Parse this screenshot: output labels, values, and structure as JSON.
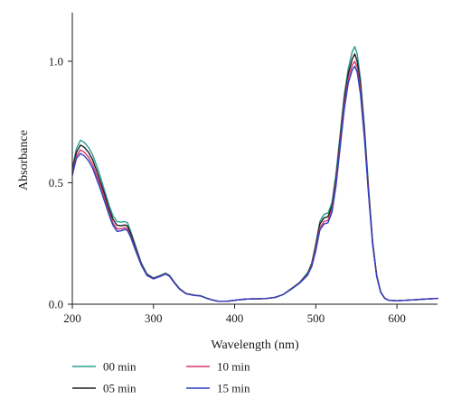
{
  "chart_data": {
    "type": "line",
    "title": "",
    "xlabel": "Wavelength (nm)",
    "ylabel": "Absorbance",
    "xlim": [
      200,
      650
    ],
    "ylim": [
      0,
      1.2
    ],
    "x_ticks": [
      200,
      300,
      400,
      500,
      600
    ],
    "y_ticks": [
      0.0,
      0.5,
      1.0
    ],
    "x_tick_labels": [
      "200",
      "300",
      "400",
      "500",
      "600"
    ],
    "y_tick_labels": [
      "0.0",
      "0.5",
      "1.0"
    ],
    "grid": false,
    "legend_position": "bottom",
    "series": [
      {
        "name": "00 min",
        "color": "#2a9d8f",
        "points": [
          [
            200,
            0.56
          ],
          [
            205,
            0.64
          ],
          [
            210,
            0.675
          ],
          [
            215,
            0.665
          ],
          [
            220,
            0.645
          ],
          [
            225,
            0.615
          ],
          [
            230,
            0.57
          ],
          [
            235,
            0.52
          ],
          [
            240,
            0.465
          ],
          [
            245,
            0.41
          ],
          [
            250,
            0.365
          ],
          [
            255,
            0.34
          ],
          [
            260,
            0.338
          ],
          [
            265,
            0.34
          ],
          [
            268,
            0.335
          ],
          [
            272,
            0.3
          ],
          [
            278,
            0.24
          ],
          [
            285,
            0.17
          ],
          [
            292,
            0.125
          ],
          [
            300,
            0.108
          ],
          [
            308,
            0.118
          ],
          [
            315,
            0.128
          ],
          [
            320,
            0.118
          ],
          [
            326,
            0.09
          ],
          [
            332,
            0.065
          ],
          [
            340,
            0.045
          ],
          [
            350,
            0.038
          ],
          [
            358,
            0.035
          ],
          [
            365,
            0.026
          ],
          [
            372,
            0.018
          ],
          [
            380,
            0.012
          ],
          [
            390,
            0.012
          ],
          [
            400,
            0.016
          ],
          [
            410,
            0.02
          ],
          [
            420,
            0.022
          ],
          [
            430,
            0.022
          ],
          [
            440,
            0.024
          ],
          [
            450,
            0.028
          ],
          [
            460,
            0.04
          ],
          [
            470,
            0.065
          ],
          [
            480,
            0.09
          ],
          [
            490,
            0.13
          ],
          [
            495,
            0.17
          ],
          [
            500,
            0.25
          ],
          [
            505,
            0.34
          ],
          [
            510,
            0.37
          ],
          [
            515,
            0.375
          ],
          [
            520,
            0.42
          ],
          [
            525,
            0.54
          ],
          [
            530,
            0.7
          ],
          [
            535,
            0.86
          ],
          [
            540,
            0.97
          ],
          [
            545,
            1.04
          ],
          [
            548,
            1.06
          ],
          [
            551,
            1.03
          ],
          [
            555,
            0.93
          ],
          [
            560,
            0.73
          ],
          [
            565,
            0.48
          ],
          [
            570,
            0.26
          ],
          [
            575,
            0.12
          ],
          [
            580,
            0.05
          ],
          [
            585,
            0.025
          ],
          [
            590,
            0.016
          ],
          [
            600,
            0.014
          ],
          [
            610,
            0.016
          ],
          [
            620,
            0.018
          ],
          [
            630,
            0.02
          ],
          [
            640,
            0.022
          ],
          [
            650,
            0.024
          ]
        ]
      },
      {
        "name": "05 min",
        "color": "#1e1e1e",
        "points": [
          [
            200,
            0.55
          ],
          [
            205,
            0.625
          ],
          [
            210,
            0.655
          ],
          [
            215,
            0.645
          ],
          [
            220,
            0.625
          ],
          [
            225,
            0.595
          ],
          [
            230,
            0.55
          ],
          [
            235,
            0.5
          ],
          [
            240,
            0.45
          ],
          [
            245,
            0.395
          ],
          [
            250,
            0.35
          ],
          [
            255,
            0.325
          ],
          [
            260,
            0.323
          ],
          [
            265,
            0.326
          ],
          [
            268,
            0.322
          ],
          [
            272,
            0.29
          ],
          [
            278,
            0.232
          ],
          [
            285,
            0.165
          ],
          [
            292,
            0.122
          ],
          [
            300,
            0.106
          ],
          [
            308,
            0.116
          ],
          [
            315,
            0.126
          ],
          [
            320,
            0.116
          ],
          [
            326,
            0.088
          ],
          [
            332,
            0.064
          ],
          [
            340,
            0.044
          ],
          [
            350,
            0.037
          ],
          [
            358,
            0.034
          ],
          [
            365,
            0.025
          ],
          [
            372,
            0.018
          ],
          [
            380,
            0.012
          ],
          [
            390,
            0.012
          ],
          [
            400,
            0.016
          ],
          [
            410,
            0.02
          ],
          [
            420,
            0.022
          ],
          [
            430,
            0.022
          ],
          [
            440,
            0.024
          ],
          [
            450,
            0.028
          ],
          [
            460,
            0.04
          ],
          [
            470,
            0.064
          ],
          [
            480,
            0.088
          ],
          [
            490,
            0.125
          ],
          [
            495,
            0.165
          ],
          [
            500,
            0.24
          ],
          [
            505,
            0.33
          ],
          [
            510,
            0.355
          ],
          [
            515,
            0.36
          ],
          [
            520,
            0.405
          ],
          [
            525,
            0.52
          ],
          [
            530,
            0.68
          ],
          [
            535,
            0.84
          ],
          [
            540,
            0.95
          ],
          [
            545,
            1.01
          ],
          [
            548,
            1.03
          ],
          [
            551,
            1.0
          ],
          [
            555,
            0.905
          ],
          [
            560,
            0.71
          ],
          [
            565,
            0.47
          ],
          [
            570,
            0.255
          ],
          [
            575,
            0.118
          ],
          [
            580,
            0.05
          ],
          [
            585,
            0.024
          ],
          [
            590,
            0.016
          ],
          [
            600,
            0.014
          ],
          [
            610,
            0.016
          ],
          [
            620,
            0.018
          ],
          [
            630,
            0.02
          ],
          [
            640,
            0.022
          ],
          [
            650,
            0.024
          ]
        ]
      },
      {
        "name": "10 min",
        "color": "#d6336c",
        "points": [
          [
            200,
            0.54
          ],
          [
            205,
            0.61
          ],
          [
            210,
            0.635
          ],
          [
            215,
            0.625
          ],
          [
            220,
            0.605
          ],
          [
            225,
            0.575
          ],
          [
            230,
            0.53
          ],
          [
            235,
            0.485
          ],
          [
            240,
            0.435
          ],
          [
            245,
            0.38
          ],
          [
            250,
            0.335
          ],
          [
            255,
            0.31
          ],
          [
            260,
            0.31
          ],
          [
            265,
            0.315
          ],
          [
            268,
            0.31
          ],
          [
            272,
            0.28
          ],
          [
            278,
            0.225
          ],
          [
            285,
            0.162
          ],
          [
            292,
            0.12
          ],
          [
            300,
            0.105
          ],
          [
            308,
            0.115
          ],
          [
            315,
            0.125
          ],
          [
            320,
            0.115
          ],
          [
            326,
            0.087
          ],
          [
            332,
            0.063
          ],
          [
            340,
            0.044
          ],
          [
            350,
            0.037
          ],
          [
            358,
            0.034
          ],
          [
            365,
            0.025
          ],
          [
            372,
            0.018
          ],
          [
            380,
            0.012
          ],
          [
            390,
            0.012
          ],
          [
            400,
            0.016
          ],
          [
            410,
            0.02
          ],
          [
            420,
            0.022
          ],
          [
            430,
            0.022
          ],
          [
            440,
            0.024
          ],
          [
            450,
            0.028
          ],
          [
            460,
            0.04
          ],
          [
            470,
            0.063
          ],
          [
            480,
            0.087
          ],
          [
            490,
            0.122
          ],
          [
            495,
            0.16
          ],
          [
            500,
            0.23
          ],
          [
            505,
            0.315
          ],
          [
            510,
            0.34
          ],
          [
            515,
            0.345
          ],
          [
            520,
            0.39
          ],
          [
            525,
            0.505
          ],
          [
            530,
            0.66
          ],
          [
            535,
            0.82
          ],
          [
            540,
            0.93
          ],
          [
            545,
            0.985
          ],
          [
            548,
            1.0
          ],
          [
            551,
            0.975
          ],
          [
            555,
            0.885
          ],
          [
            560,
            0.695
          ],
          [
            565,
            0.46
          ],
          [
            570,
            0.25
          ],
          [
            575,
            0.116
          ],
          [
            580,
            0.049
          ],
          [
            585,
            0.024
          ],
          [
            590,
            0.016
          ],
          [
            600,
            0.014
          ],
          [
            610,
            0.016
          ],
          [
            620,
            0.018
          ],
          [
            630,
            0.02
          ],
          [
            640,
            0.022
          ],
          [
            650,
            0.024
          ]
        ]
      },
      {
        "name": "15 min",
        "color": "#2f3fbf",
        "points": [
          [
            200,
            0.53
          ],
          [
            205,
            0.6
          ],
          [
            210,
            0.62
          ],
          [
            215,
            0.61
          ],
          [
            220,
            0.59
          ],
          [
            225,
            0.56
          ],
          [
            230,
            0.515
          ],
          [
            235,
            0.47
          ],
          [
            240,
            0.42
          ],
          [
            245,
            0.37
          ],
          [
            250,
            0.325
          ],
          [
            255,
            0.3
          ],
          [
            260,
            0.302
          ],
          [
            265,
            0.308
          ],
          [
            268,
            0.303
          ],
          [
            272,
            0.275
          ],
          [
            278,
            0.22
          ],
          [
            285,
            0.16
          ],
          [
            292,
            0.118
          ],
          [
            300,
            0.104
          ],
          [
            308,
            0.114
          ],
          [
            315,
            0.124
          ],
          [
            320,
            0.114
          ],
          [
            326,
            0.086
          ],
          [
            332,
            0.062
          ],
          [
            340,
            0.043
          ],
          [
            350,
            0.036
          ],
          [
            358,
            0.034
          ],
          [
            365,
            0.025
          ],
          [
            372,
            0.018
          ],
          [
            380,
            0.012
          ],
          [
            390,
            0.012
          ],
          [
            400,
            0.016
          ],
          [
            410,
            0.02
          ],
          [
            420,
            0.022
          ],
          [
            430,
            0.022
          ],
          [
            440,
            0.024
          ],
          [
            450,
            0.028
          ],
          [
            460,
            0.04
          ],
          [
            470,
            0.062
          ],
          [
            480,
            0.086
          ],
          [
            490,
            0.12
          ],
          [
            495,
            0.155
          ],
          [
            500,
            0.22
          ],
          [
            505,
            0.305
          ],
          [
            510,
            0.33
          ],
          [
            515,
            0.335
          ],
          [
            520,
            0.38
          ],
          [
            525,
            0.49
          ],
          [
            530,
            0.645
          ],
          [
            535,
            0.8
          ],
          [
            540,
            0.91
          ],
          [
            545,
            0.965
          ],
          [
            548,
            0.98
          ],
          [
            551,
            0.955
          ],
          [
            555,
            0.865
          ],
          [
            560,
            0.68
          ],
          [
            565,
            0.45
          ],
          [
            570,
            0.245
          ],
          [
            575,
            0.114
          ],
          [
            580,
            0.048
          ],
          [
            585,
            0.024
          ],
          [
            590,
            0.016
          ],
          [
            600,
            0.014
          ],
          [
            610,
            0.016
          ],
          [
            620,
            0.018
          ],
          [
            630,
            0.02
          ],
          [
            640,
            0.022
          ],
          [
            650,
            0.024
          ]
        ]
      }
    ]
  }
}
